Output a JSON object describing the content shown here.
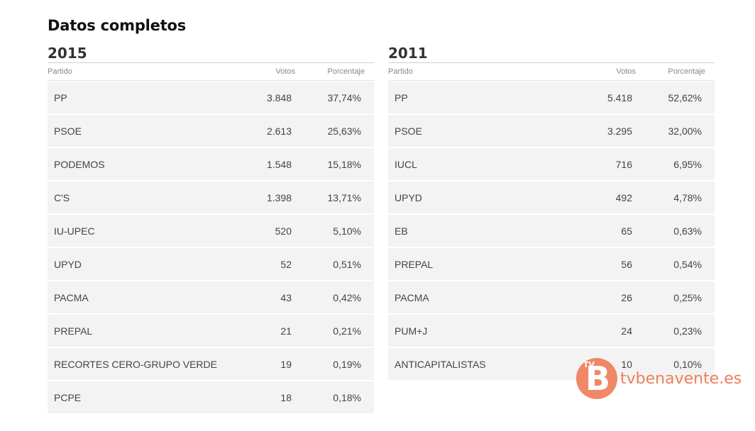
{
  "page": {
    "title": "Datos completos"
  },
  "tables": [
    {
      "year": "2015",
      "headers": {
        "party": "Partido",
        "votes": "Votos",
        "pct": "Porcentaje"
      },
      "rows": [
        {
          "party": "PP",
          "votes": "3.848",
          "pct": "37,74%"
        },
        {
          "party": "PSOE",
          "votes": "2.613",
          "pct": "25,63%"
        },
        {
          "party": "PODEMOS",
          "votes": "1.548",
          "pct": "15,18%"
        },
        {
          "party": "C'S",
          "votes": "1.398",
          "pct": "13,71%"
        },
        {
          "party": "IU-UPEC",
          "votes": "520",
          "pct": "5,10%"
        },
        {
          "party": "UPYD",
          "votes": "52",
          "pct": "0,51%"
        },
        {
          "party": "PACMA",
          "votes": "43",
          "pct": "0,42%"
        },
        {
          "party": "PREPAL",
          "votes": "21",
          "pct": "0,21%"
        },
        {
          "party": "RECORTES CERO-GRUPO VERDE",
          "votes": "19",
          "pct": "0,19%"
        },
        {
          "party": "PCPE",
          "votes": "18",
          "pct": "0,18%"
        }
      ]
    },
    {
      "year": "2011",
      "headers": {
        "party": "Partido",
        "votes": "Votos",
        "pct": "Porcentaje"
      },
      "rows": [
        {
          "party": "PP",
          "votes": "5.418",
          "pct": "52,62%"
        },
        {
          "party": "PSOE",
          "votes": "3.295",
          "pct": "32,00%"
        },
        {
          "party": "IUCL",
          "votes": "716",
          "pct": "6,95%"
        },
        {
          "party": "UPYD",
          "votes": "492",
          "pct": "4,78%"
        },
        {
          "party": "EB",
          "votes": "65",
          "pct": "0,63%"
        },
        {
          "party": "PREPAL",
          "votes": "56",
          "pct": "0,54%"
        },
        {
          "party": "PACMA",
          "votes": "26",
          "pct": "0,25%"
        },
        {
          "party": "PUM+J",
          "votes": "24",
          "pct": "0,23%"
        },
        {
          "party": "ANTICAPITALISTAS",
          "votes": "10",
          "pct": "0,10%"
        }
      ]
    }
  ],
  "watermark": {
    "logo_text": "tvbenavente.es",
    "icon": "tvb-logo-icon",
    "color": "#f07e5a"
  }
}
